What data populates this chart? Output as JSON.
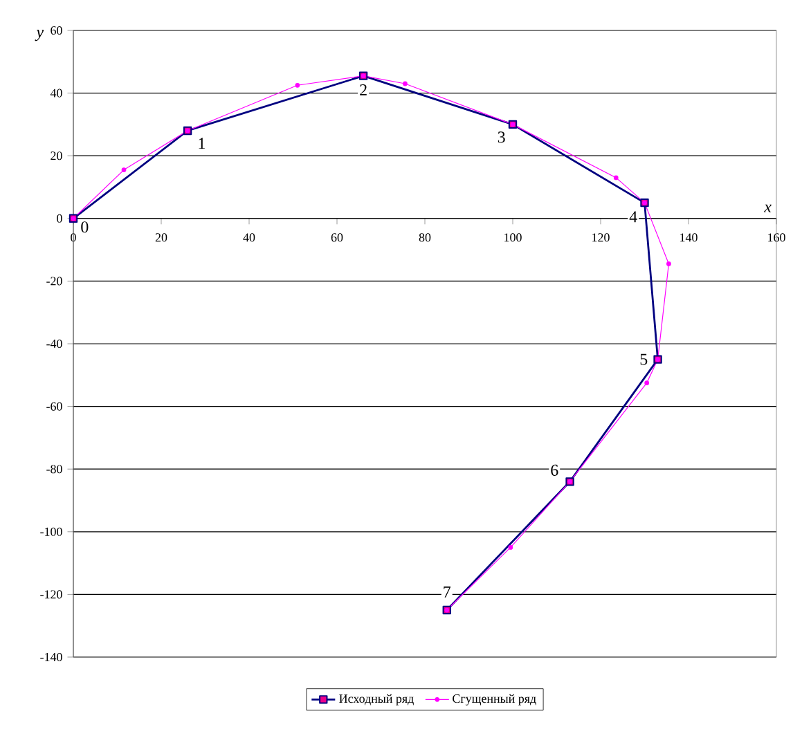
{
  "chart_data": {
    "type": "line",
    "xlabel": "x",
    "ylabel": "y",
    "xlim": [
      0,
      160
    ],
    "ylim": [
      -140,
      60
    ],
    "xticks": [
      0,
      20,
      40,
      60,
      80,
      100,
      120,
      140,
      160
    ],
    "yticks": [
      -140,
      -120,
      -100,
      -80,
      -60,
      -40,
      -20,
      0,
      20,
      40,
      60
    ],
    "grid": "y",
    "legend": "bottom",
    "line_style": "solid",
    "series": [
      {
        "name": "Исходный ряд",
        "color": "#000080",
        "marker": "square",
        "x": [
          0,
          26,
          66,
          100,
          130,
          133,
          113,
          85
        ],
        "values": [
          0,
          28,
          45.5,
          30,
          5,
          -45,
          -84,
          -125
        ]
      },
      {
        "name": "Сгущенный ряд",
        "color": "#ff00ff",
        "marker": "circle",
        "x": [
          0,
          11.5,
          26,
          51,
          66,
          75.5,
          100,
          123.5,
          130,
          135.5,
          133,
          130.5,
          113,
          99.5,
          85
        ],
        "values": [
          0,
          15.5,
          28,
          42.5,
          45.5,
          43,
          30,
          13,
          5,
          -14.5,
          -45,
          -52.5,
          -84,
          -105,
          -125
        ]
      }
    ],
    "annotations": [
      {
        "text": "0",
        "x": 0,
        "y": 0
      },
      {
        "text": "1",
        "x": 26,
        "y": 28
      },
      {
        "text": "2",
        "x": 66,
        "y": 45.5
      },
      {
        "text": "3",
        "x": 100,
        "y": 30
      },
      {
        "text": "4",
        "x": 130,
        "y": 5
      },
      {
        "text": "5",
        "x": 133,
        "y": -45
      },
      {
        "text": "6",
        "x": 113,
        "y": -84
      },
      {
        "text": "7",
        "x": 85,
        "y": -125
      }
    ]
  }
}
